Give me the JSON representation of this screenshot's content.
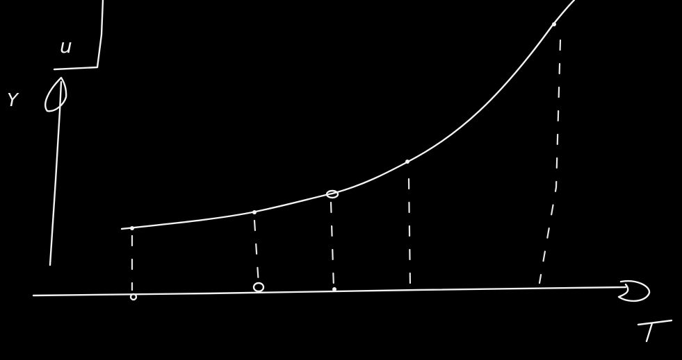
{
  "labels": {
    "box": "u",
    "y_axis": "Y",
    "x_axis": "T"
  }
}
